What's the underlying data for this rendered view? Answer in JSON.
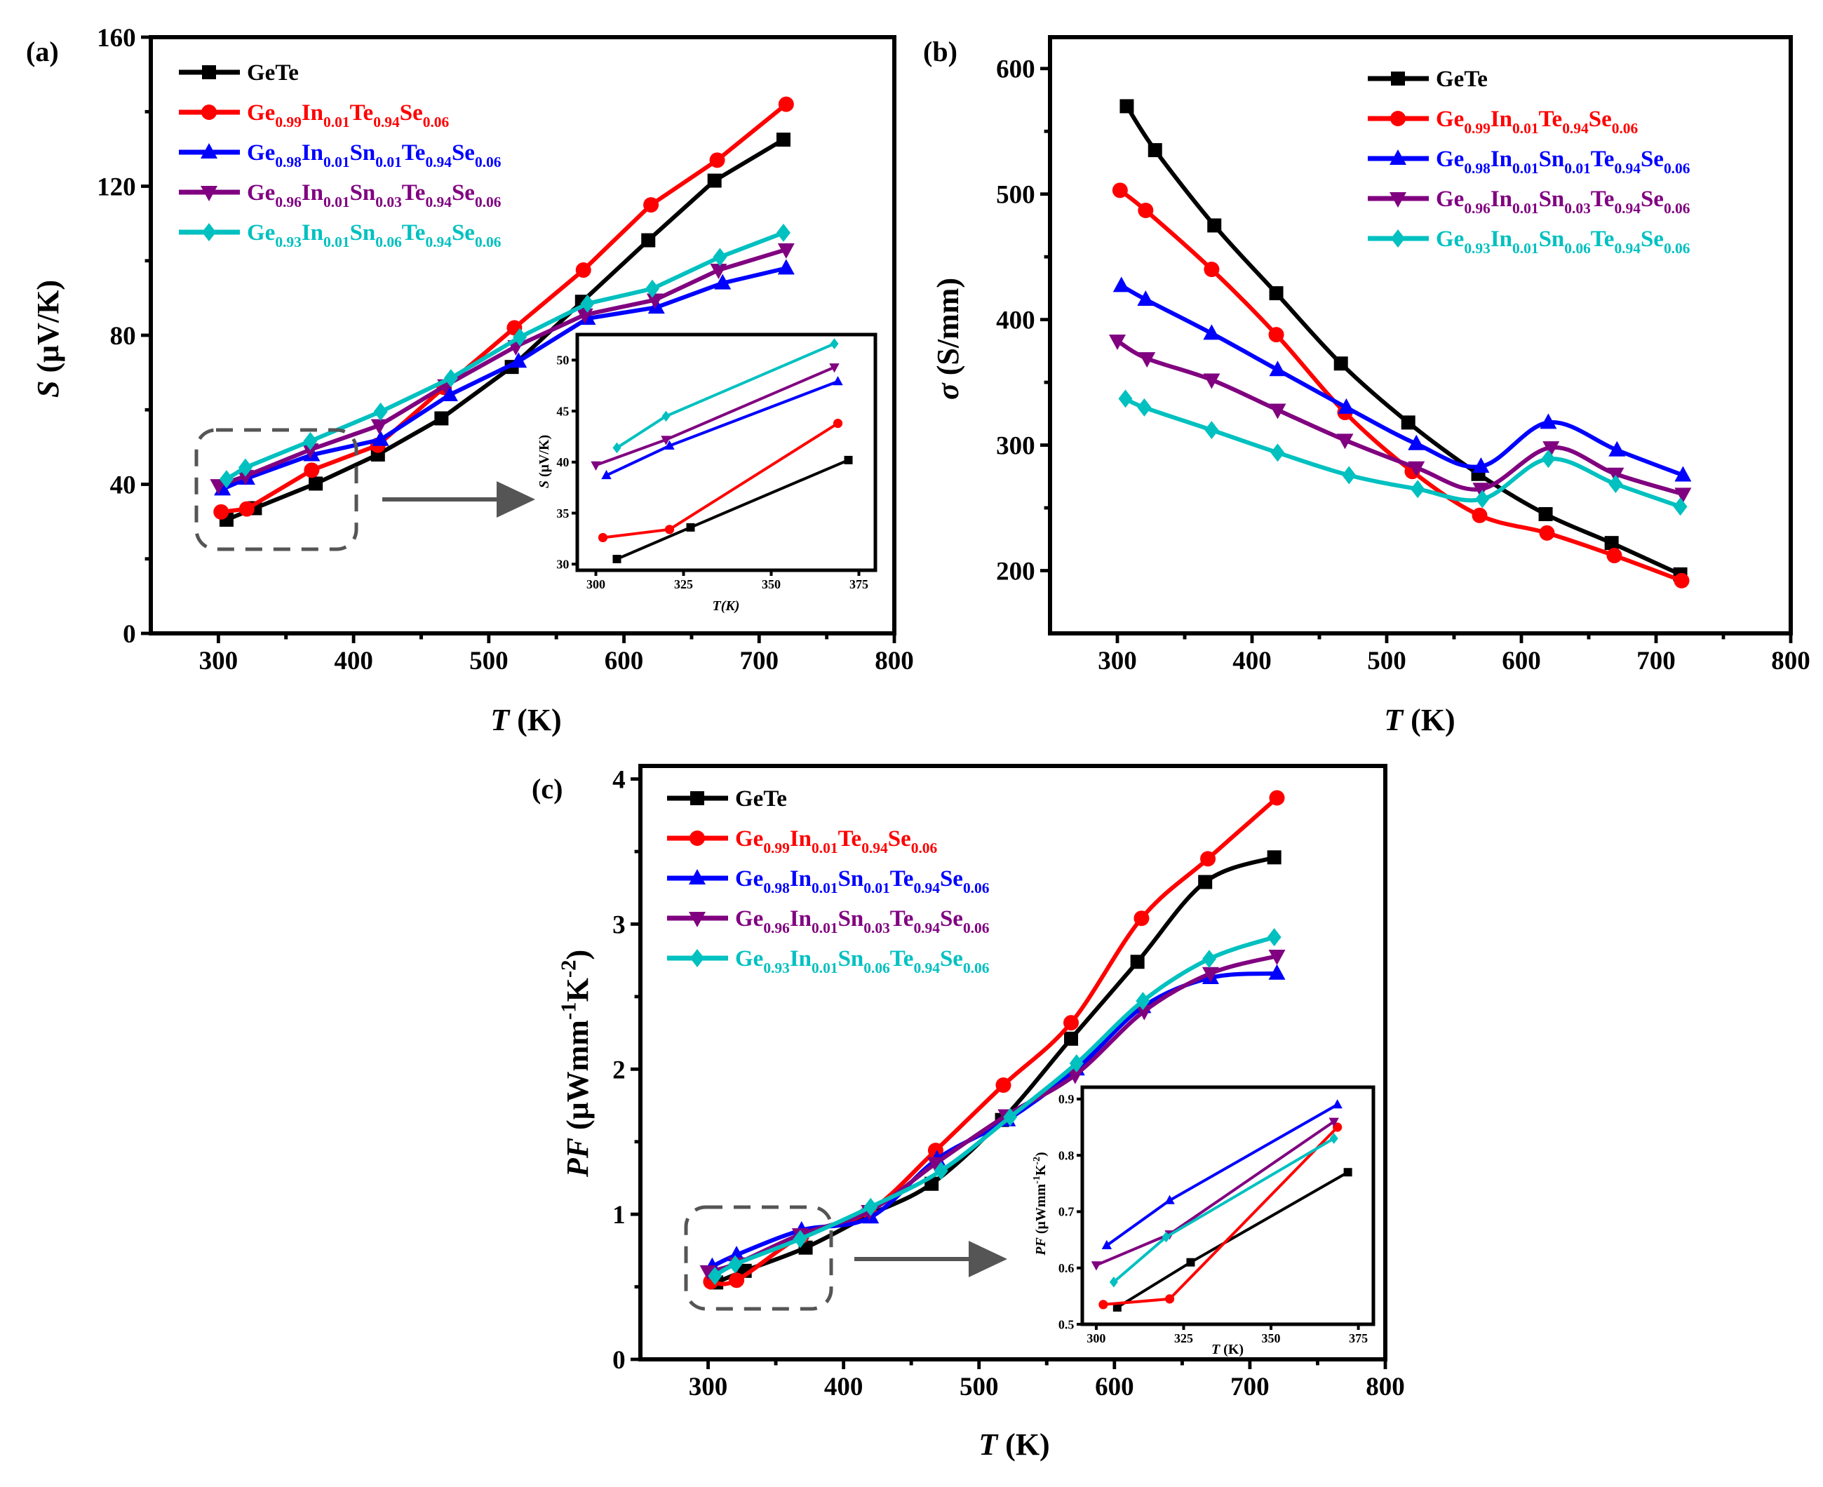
{
  "colors": {
    "GeTe": "#000000",
    "In": "#ff0000",
    "Sn01": "#0000ff",
    "Sn03": "#800080",
    "Sn06": "#00c0c0",
    "frame": "#000000",
    "dash": "#555555"
  },
  "legend": [
    {
      "label": "GeTe",
      "color": "#000000",
      "marker": "square"
    },
    {
      "label": "Ge0.99In0.01Te0.94Se0.06",
      "color": "#ff0000",
      "marker": "circle"
    },
    {
      "label": "Ge0.98In0.01Sn0.01Te0.94Se0.06",
      "color": "#0000ff",
      "marker": "triangle-up"
    },
    {
      "label": "Ge0.96In0.01Sn0.03Te0.94Se0.06",
      "color": "#800080",
      "marker": "triangle-down"
    },
    {
      "label": "Ge0.93In0.01Sn0.06Te0.94Se0.06",
      "color": "#00c0c0",
      "marker": "diamond"
    }
  ],
  "chart_data": [
    {
      "type": "line",
      "panel_label": "(a)",
      "smooth": false,
      "xlabel": "T (K)",
      "ylabel": "S (μV/K)",
      "xlim": [
        250,
        800
      ],
      "ylim": [
        0,
        160
      ],
      "xticks": [
        300,
        400,
        500,
        600,
        700,
        800
      ],
      "yticks": [
        0,
        40,
        80,
        120,
        160
      ],
      "legend_position": "top-left",
      "series": [
        {
          "name": "GeTe",
          "x": [
            306,
            327,
            372,
            418,
            465,
            517,
            569,
            618,
            667,
            718
          ],
          "y": [
            30.5,
            33.6,
            40.2,
            48,
            57.7,
            71.5,
            89,
            105.5,
            121.5,
            132.5
          ]
        },
        {
          "name": "Ge0.99In0.01Te0.94Se0.06",
          "x": [
            302,
            321,
            369,
            418,
            467,
            519,
            570,
            620,
            669,
            720
          ],
          "y": [
            32.6,
            33.4,
            43.8,
            50.5,
            66,
            82,
            97.5,
            115,
            127,
            142
          ]
        },
        {
          "name": "Ge0.98In0.01Sn0.01Te0.94Se0.06",
          "x": [
            303,
            321,
            369,
            420,
            471,
            522,
            573,
            624,
            673,
            720
          ],
          "y": [
            38.7,
            41.6,
            47.9,
            52,
            64,
            73,
            84.5,
            87.5,
            94,
            98
          ]
        },
        {
          "name": "Ge0.96In0.01Sn0.03Te0.94Se0.06",
          "x": [
            300,
            320,
            368,
            419,
            468,
            520,
            571,
            623,
            670,
            720
          ],
          "y": [
            39.7,
            42.2,
            49.3,
            55.8,
            66.5,
            77,
            85.5,
            89.5,
            97.5,
            103
          ]
        },
        {
          "name": "Ge0.93In0.01Sn0.06Te0.94Se0.06",
          "x": [
            306,
            320,
            368,
            420,
            472,
            523,
            573,
            621,
            671,
            718
          ],
          "y": [
            41.4,
            44.5,
            51.6,
            59.5,
            68.5,
            79.5,
            88.5,
            92.5,
            101,
            107.5
          ]
        }
      ],
      "inset": {
        "xlabel": "T(K)",
        "ylabel": "S (μV/K)",
        "xlim": [
          294.7,
          379.7
        ],
        "ylim": [
          29.4,
          52.5
        ],
        "xticks": [
          300,
          325,
          350,
          375
        ],
        "yticks": [
          30,
          35,
          40,
          45,
          50
        ],
        "points": 3
      }
    },
    {
      "type": "line",
      "panel_label": "(b)",
      "smooth": true,
      "xlabel": "T (K)",
      "ylabel": "σ (S/mm)",
      "xlim": [
        250,
        800
      ],
      "ylim": [
        150,
        625
      ],
      "xticks": [
        300,
        400,
        500,
        600,
        700,
        800
      ],
      "yticks": [
        200,
        300,
        400,
        500,
        600
      ],
      "legend_position": "top-right",
      "series": [
        {
          "name": "GeTe",
          "x": [
            307,
            328,
            372,
            418,
            466,
            516,
            568,
            618,
            667,
            718
          ],
          "y": [
            570,
            535,
            475,
            421,
            365,
            318,
            277,
            245,
            222,
            197
          ]
        },
        {
          "name": "Ge0.99In0.01Te0.94Se0.06",
          "x": [
            302,
            321,
            370,
            418,
            469,
            519,
            569,
            619,
            669,
            719
          ],
          "y": [
            503,
            487,
            440,
            388,
            326,
            279,
            244,
            230,
            212,
            192
          ]
        },
        {
          "name": "Ge0.98In0.01Sn0.01Te0.94Se0.06",
          "x": [
            303,
            321,
            370,
            419,
            470,
            522,
            570,
            620,
            671,
            720
          ],
          "y": [
            427,
            416,
            389,
            360,
            330,
            301,
            283,
            318,
            296,
            276
          ]
        },
        {
          "name": "Ge0.96In0.01Sn0.03Te0.94Se0.06",
          "x": [
            300,
            322,
            370,
            419,
            469,
            522,
            570,
            622,
            670,
            720
          ],
          "y": [
            383,
            369,
            352,
            328,
            304,
            282,
            265,
            298,
            277,
            261
          ]
        },
        {
          "name": "Ge0.93In0.01Sn0.06Te0.94Se0.06",
          "x": [
            306,
            320,
            370,
            419,
            472,
            523,
            571,
            620,
            670,
            718
          ],
          "y": [
            337,
            330,
            312,
            294,
            276,
            265,
            257,
            289,
            269,
            251
          ]
        }
      ]
    },
    {
      "type": "line",
      "panel_label": "(c)",
      "smooth": true,
      "xlabel": "T (K)",
      "ylabel": "PF (μWmm-1K-2)",
      "xlim": [
        250,
        800
      ],
      "ylim": [
        0,
        4.09
      ],
      "xticks": [
        300,
        400,
        500,
        600,
        700,
        800
      ],
      "yticks": [
        0,
        1,
        2,
        3,
        4
      ],
      "legend_position": "top-left",
      "series": [
        {
          "name": "GeTe",
          "x": [
            306,
            327,
            372,
            418,
            465,
            517,
            568,
            617,
            667,
            718
          ],
          "y": [
            0.53,
            0.61,
            0.77,
            0.99,
            1.21,
            1.65,
            2.21,
            2.74,
            3.29,
            3.46
          ]
        },
        {
          "name": "Ge0.99In0.01Te0.94Se0.06",
          "x": [
            302,
            321,
            369,
            419,
            468,
            518,
            568,
            620,
            669,
            720
          ],
          "y": [
            0.535,
            0.545,
            0.85,
            1.02,
            1.44,
            1.89,
            2.32,
            3.04,
            3.45,
            3.87
          ]
        },
        {
          "name": "Ge0.98In0.01Sn0.01Te0.94Se0.06",
          "x": [
            303,
            321,
            369,
            420,
            469,
            521,
            572,
            621,
            671,
            720
          ],
          "y": [
            0.64,
            0.72,
            0.89,
            0.98,
            1.38,
            1.65,
            2.0,
            2.43,
            2.63,
            2.66
          ]
        },
        {
          "name": "Ge0.96In0.01Sn0.03Te0.94Se0.06",
          "x": [
            300,
            321,
            368,
            419,
            468,
            520,
            571,
            622,
            671,
            720
          ],
          "y": [
            0.605,
            0.66,
            0.86,
            1.02,
            1.35,
            1.68,
            1.96,
            2.4,
            2.66,
            2.78
          ]
        },
        {
          "name": "Ge0.93In0.01Sn0.06Te0.94Se0.06",
          "x": [
            305,
            320,
            368,
            420,
            472,
            523,
            572,
            621,
            670,
            718
          ],
          "y": [
            0.575,
            0.655,
            0.83,
            1.05,
            1.3,
            1.67,
            2.04,
            2.47,
            2.76,
            2.91
          ]
        }
      ],
      "inset": {
        "xlabel": "T (K)",
        "ylabel": "PF (μWmm-1K-2)",
        "xlim": [
          296,
          379.3
        ],
        "ylim": [
          0.5,
          0.921
        ],
        "xticks": [
          300,
          325,
          350,
          375
        ],
        "yticks": [
          0.5,
          0.6,
          0.7,
          0.8,
          0.9
        ],
        "points": 3
      }
    }
  ]
}
